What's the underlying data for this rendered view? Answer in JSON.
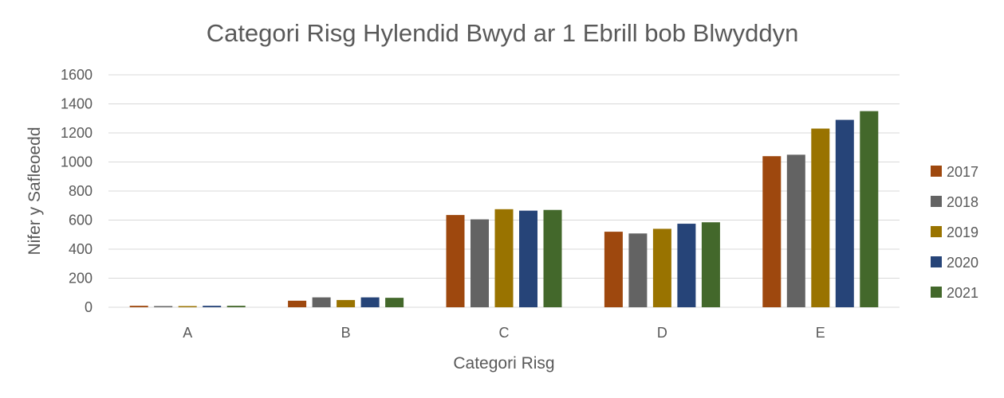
{
  "chart_data": {
    "type": "bar",
    "title": "Categori Risg Hylendid Bwyd ar 1 Ebrill bob Blwyddyn",
    "xlabel": "Categori Risg",
    "ylabel": "Nifer y Safleoedd",
    "categories": [
      "A",
      "B",
      "C",
      "D",
      "E"
    ],
    "ylim": [
      0,
      1600
    ],
    "yticks": [
      0,
      200,
      400,
      600,
      800,
      1000,
      1200,
      1400,
      1600
    ],
    "grid": true,
    "legend_position": "right",
    "series": [
      {
        "name": "2017",
        "color": "#9e480e",
        "values": [
          10,
          45,
          635,
          520,
          1040
        ]
      },
      {
        "name": "2018",
        "color": "#636363",
        "values": [
          8,
          68,
          605,
          508,
          1050
        ]
      },
      {
        "name": "2019",
        "color": "#997300",
        "values": [
          8,
          50,
          675,
          540,
          1230
        ]
      },
      {
        "name": "2020",
        "color": "#264478",
        "values": [
          10,
          68,
          665,
          575,
          1290
        ]
      },
      {
        "name": "2021",
        "color": "#43682b",
        "values": [
          10,
          65,
          670,
          585,
          1350
        ]
      }
    ]
  }
}
